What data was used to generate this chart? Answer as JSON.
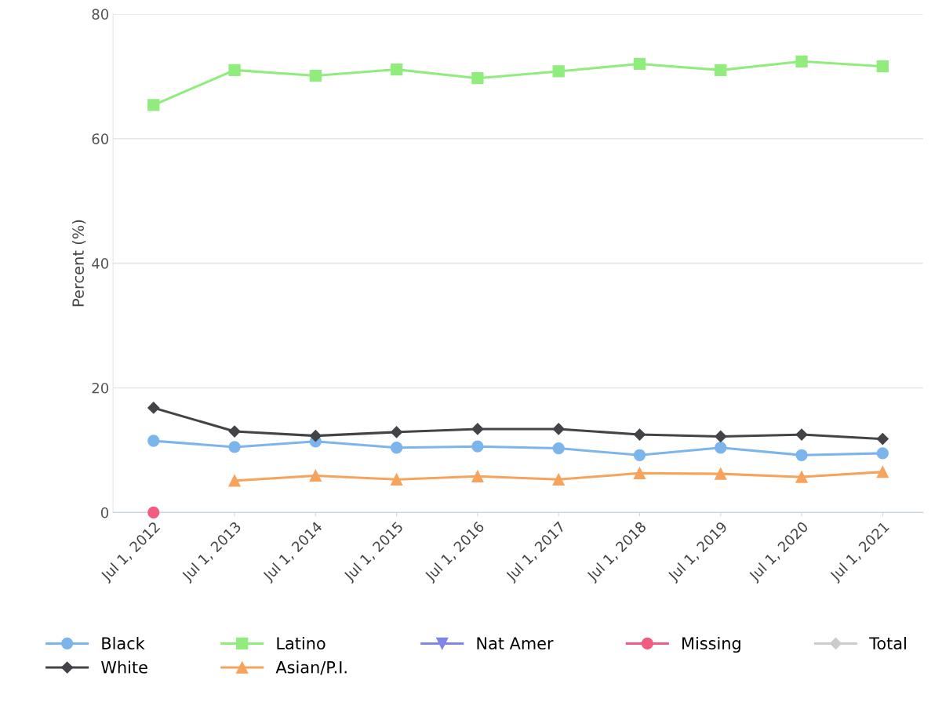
{
  "chart_data": {
    "type": "line",
    "ylabel": "Percent (%)",
    "categories": [
      "Jul 1, 2012",
      "Jul 1, 2013",
      "Jul 1, 2014",
      "Jul 1, 2015",
      "Jul 1, 2016",
      "Jul 1, 2017",
      "Jul 1, 2018",
      "Jul 1, 2019",
      "Jul 1, 2020",
      "Jul 1, 2021"
    ],
    "series": [
      {
        "name": "Black",
        "color": "#7cb5ec",
        "marker": "circle",
        "values": [
          11.5,
          10.5,
          11.4,
          10.4,
          10.6,
          10.3,
          9.2,
          10.4,
          9.2,
          9.5
        ]
      },
      {
        "name": "White",
        "color": "#434348",
        "marker": "diamond",
        "values": [
          16.8,
          13.0,
          12.3,
          12.9,
          13.4,
          13.4,
          12.5,
          12.2,
          12.5,
          11.8
        ]
      },
      {
        "name": "Latino",
        "color": "#90ed7d",
        "marker": "square",
        "values": [
          65.4,
          71.0,
          70.1,
          71.1,
          69.7,
          70.8,
          72.0,
          71.0,
          72.4,
          71.6
        ]
      },
      {
        "name": "Asian/P.I.",
        "color": "#f7a35c",
        "marker": "triangle",
        "values": [
          null,
          5.1,
          5.9,
          5.3,
          5.8,
          5.3,
          6.3,
          6.2,
          5.7,
          6.5
        ]
      },
      {
        "name": "Nat Amer",
        "color": "#8085e9",
        "marker": "triangle_down",
        "values": [
          null,
          null,
          null,
          null,
          null,
          null,
          null,
          null,
          null,
          null
        ]
      },
      {
        "name": "Missing",
        "color": "#f15c80",
        "marker": "circle",
        "values": [
          0,
          null,
          null,
          null,
          null,
          null,
          null,
          null,
          null,
          null
        ]
      },
      {
        "name": "Total",
        "color": "#cccccc",
        "marker": "diamond",
        "values": [
          null,
          null,
          null,
          null,
          null,
          null,
          null,
          null,
          null,
          null
        ]
      }
    ],
    "ylim": [
      0,
      80
    ],
    "yticks": [
      0,
      20,
      40,
      60,
      80
    ],
    "grid": "y",
    "legend": "bottom"
  }
}
